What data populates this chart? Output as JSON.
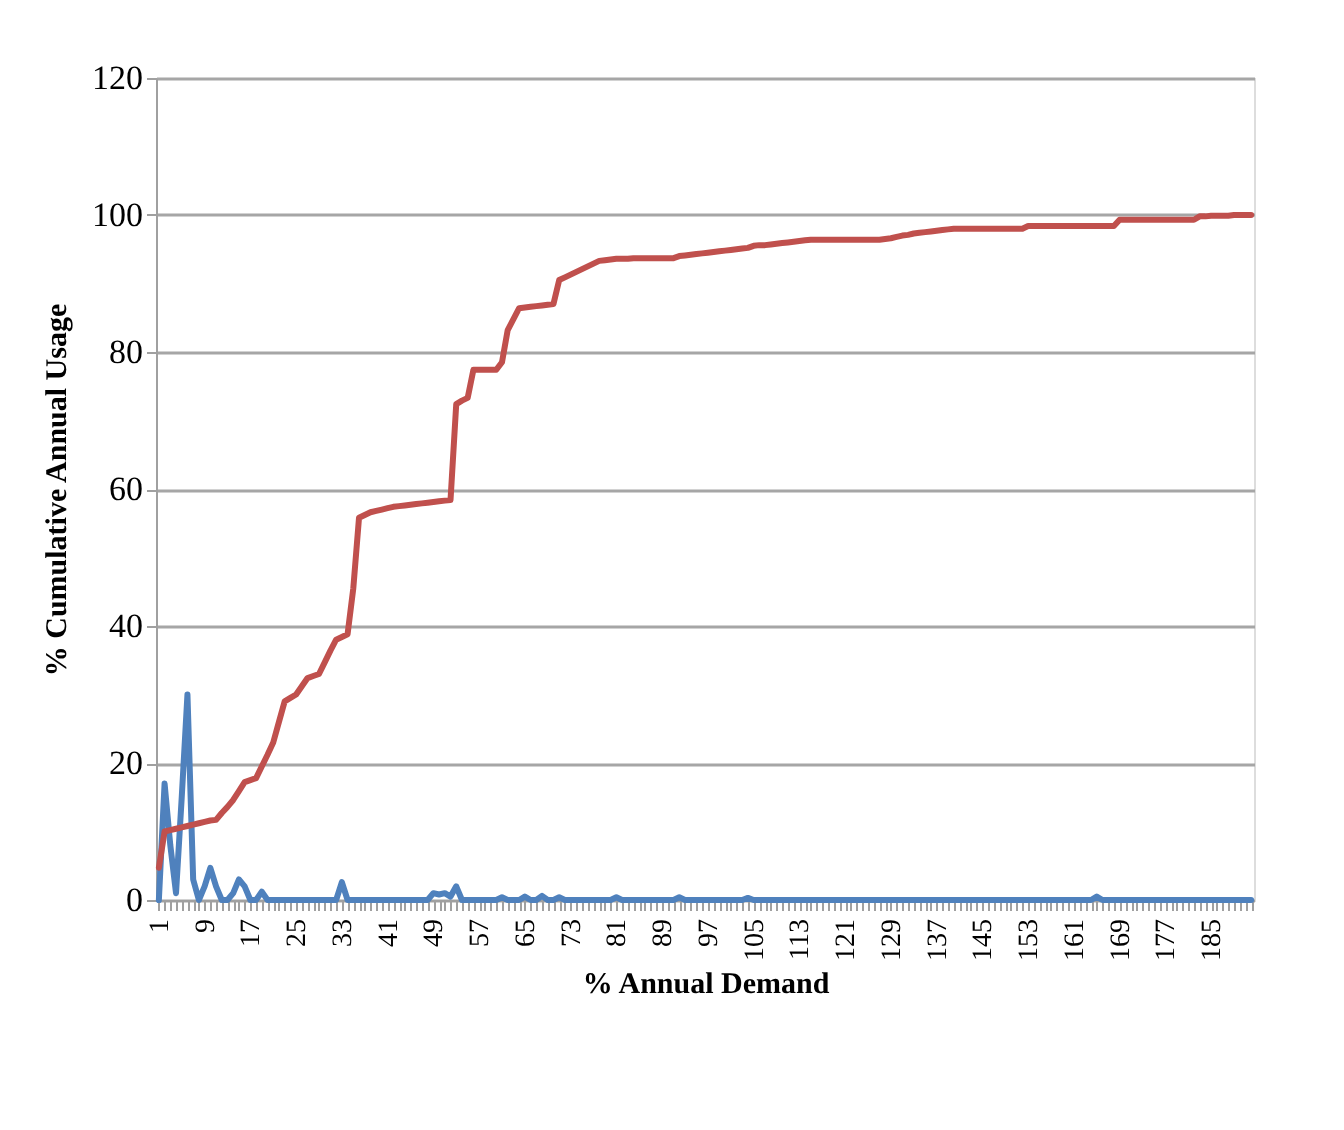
{
  "chart_data": {
    "type": "line",
    "xlabel": "% Annual Demand",
    "ylabel": "% Cumulative Annual Usage",
    "categories": [
      "1",
      null,
      null,
      null,
      null,
      null,
      null,
      null,
      "9",
      null,
      null,
      null,
      null,
      null,
      null,
      null,
      "17",
      null,
      null,
      null,
      null,
      null,
      null,
      null,
      "25",
      null,
      null,
      null,
      null,
      null,
      null,
      null,
      "33",
      null,
      null,
      null,
      null,
      null,
      null,
      null,
      "41",
      null,
      null,
      null,
      null,
      null,
      null,
      null,
      "49",
      null,
      null,
      null,
      null,
      null,
      null,
      null,
      "57",
      null,
      null,
      null,
      null,
      null,
      null,
      null,
      "65",
      null,
      null,
      null,
      null,
      null,
      null,
      null,
      "73",
      null,
      null,
      null,
      null,
      null,
      null,
      null,
      "81",
      null,
      null,
      null,
      null,
      null,
      null,
      null,
      "89",
      null,
      null,
      null,
      null,
      null,
      null,
      null,
      "97",
      null,
      null,
      null,
      null,
      null,
      null,
      null,
      "105",
      null,
      null,
      null,
      null,
      null,
      null,
      null,
      "113",
      null,
      null,
      null,
      null,
      null,
      null,
      null,
      "121",
      null,
      null,
      null,
      null,
      null,
      null,
      null,
      "129",
      null,
      null,
      null,
      null,
      null,
      null,
      null,
      "137",
      null,
      null,
      null,
      null,
      null,
      null,
      null,
      "145",
      null,
      null,
      null,
      null,
      null,
      null,
      null,
      "153",
      null,
      null,
      null,
      null,
      null,
      null,
      null,
      "161",
      null,
      null,
      null,
      null,
      null,
      null,
      null,
      "169",
      null,
      null,
      null,
      null,
      null,
      null,
      null,
      "177",
      null,
      null,
      null,
      null,
      null,
      null,
      null,
      "185",
      null,
      null,
      null,
      null,
      null,
      null,
      null
    ],
    "series": [
      {
        "color": "#4f81bd",
        "values": [
          0,
          17,
          8,
          1,
          15,
          30,
          3,
          0,
          2,
          4.7,
          2,
          0,
          0,
          1,
          3,
          2,
          0,
          0,
          1.2,
          0,
          0,
          0,
          0,
          0,
          0,
          0,
          0,
          0,
          0,
          0,
          0,
          0,
          2.6,
          0,
          0,
          0,
          0,
          0,
          0,
          0,
          0,
          0,
          0,
          0,
          0,
          0,
          0,
          0,
          1,
          0.8,
          1,
          0.5,
          2,
          0,
          0,
          0,
          0,
          0,
          0,
          0,
          0.4,
          0,
          0,
          0,
          0.5,
          0,
          0,
          0.6,
          0,
          0,
          0.4,
          0,
          0,
          0,
          0,
          0,
          0,
          0,
          0,
          0,
          0.4,
          0,
          0,
          0,
          0,
          0,
          0,
          0,
          0,
          0,
          0,
          0.4,
          0,
          0,
          0,
          0,
          0,
          0,
          0,
          0,
          0,
          0,
          0,
          0.3,
          0,
          0,
          0,
          0,
          0,
          0,
          0,
          0,
          0,
          0,
          0,
          0,
          0,
          0,
          0,
          0,
          0,
          0,
          0,
          0,
          0,
          0,
          0,
          0,
          0,
          0,
          0,
          0,
          0,
          0,
          0,
          0,
          0,
          0,
          0,
          0,
          0,
          0,
          0,
          0,
          0,
          0,
          0,
          0,
          0,
          0,
          0,
          0,
          0,
          0,
          0,
          0,
          0,
          0,
          0,
          0,
          0,
          0,
          0,
          0,
          0.5,
          0,
          0,
          0,
          0,
          0,
          0,
          0,
          0,
          0,
          0,
          0,
          0,
          0,
          0,
          0,
          0,
          0,
          0,
          0,
          0,
          0,
          0,
          0,
          0,
          0,
          0,
          0
        ]
      },
      {
        "color": "#c0504d",
        "values": [
          4.7,
          10,
          10.2,
          10.4,
          10.6,
          10.8,
          11,
          11.2,
          11.4,
          11.6,
          11.7,
          12.7,
          13.6,
          14.6,
          15.9,
          17.2,
          17.5,
          17.8,
          19.5,
          21.2,
          23,
          26,
          29,
          29.5,
          30,
          31.2,
          32.4,
          32.7,
          33,
          34.7,
          36.4,
          38,
          38.4,
          38.8,
          45.5,
          55.8,
          56.2,
          56.6,
          56.8,
          57,
          57.2,
          57.4,
          57.5,
          57.6,
          57.7,
          57.8,
          57.9,
          58,
          58.1,
          58.2,
          58.3,
          58.4,
          72.4,
          72.9,
          73.3,
          77.4,
          77.4,
          77.4,
          77.4,
          77.4,
          78.5,
          83.2,
          84.8,
          86.4,
          86.5,
          86.6,
          86.7,
          86.8,
          86.9,
          87,
          90.5,
          90.9,
          91.3,
          91.7,
          92.1,
          92.5,
          92.9,
          93.3,
          93.4,
          93.5,
          93.6,
          93.6,
          93.6,
          93.7,
          93.7,
          93.7,
          93.7,
          93.7,
          93.7,
          93.7,
          93.7,
          94,
          94.1,
          94.2,
          94.3,
          94.4,
          94.5,
          94.6,
          94.7,
          94.8,
          94.9,
          95,
          95.1,
          95.2,
          95.5,
          95.6,
          95.6,
          95.7,
          95.8,
          95.9,
          96,
          96.1,
          96.2,
          96.3,
          96.4,
          96.4,
          96.4,
          96.4,
          96.4,
          96.4,
          96.4,
          96.4,
          96.4,
          96.4,
          96.4,
          96.4,
          96.4,
          96.5,
          96.6,
          96.8,
          97,
          97.1,
          97.3,
          97.4,
          97.5,
          97.6,
          97.7,
          97.8,
          97.9,
          98,
          98,
          98,
          98,
          98,
          98,
          98,
          98,
          98,
          98,
          98,
          98,
          98,
          98.4,
          98.4,
          98.4,
          98.4,
          98.4,
          98.4,
          98.4,
          98.4,
          98.4,
          98.4,
          98.4,
          98.4,
          98.4,
          98.4,
          98.4,
          98.4,
          99.3,
          99.3,
          99.3,
          99.3,
          99.3,
          99.3,
          99.3,
          99.3,
          99.3,
          99.3,
          99.3,
          99.3,
          99.3,
          99.3,
          99.8,
          99.8,
          99.9,
          99.9,
          99.9,
          99.9,
          100,
          100,
          100,
          100
        ]
      }
    ],
    "ylim": [
      0,
      120
    ],
    "yticks": [
      0,
      20,
      40,
      60,
      80,
      100,
      120
    ],
    "grid": "y",
    "marker": "none",
    "line_style": "solid"
  }
}
